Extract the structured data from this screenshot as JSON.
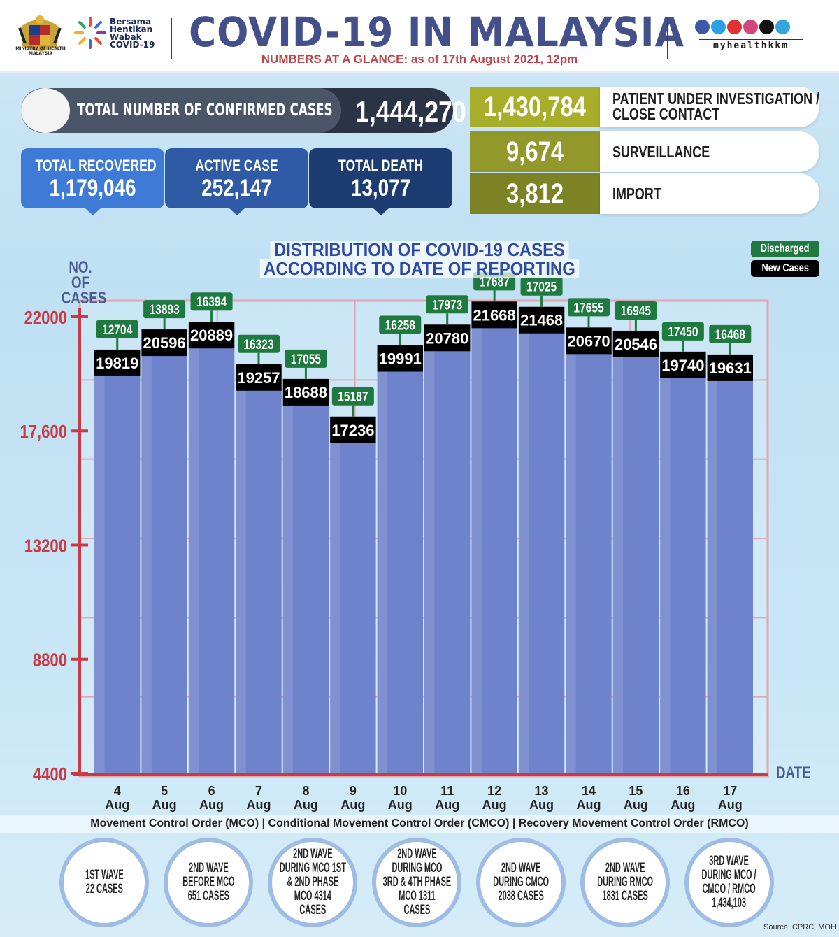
{
  "header": {
    "ministry_text": "MINISTRY OF HEALTH MALAYSIA",
    "campaign_lines": [
      "Bersama",
      "Hentikan",
      "Wabak",
      "COVID-19"
    ],
    "title": "COVID-19 IN MALAYSIA",
    "subtitle": "NUMBERS AT A GLANCE: as of 17th August 2021, 12pm",
    "social_icons": [
      "facebook-icon",
      "twitter-icon",
      "youtube-icon",
      "instagram-icon",
      "tiktok-icon",
      "telegram-icon"
    ],
    "handle": "myhealthkkm"
  },
  "totals": {
    "confirmed_label": "TOTAL NUMBER OF CONFIRMED CASES",
    "confirmed_value": "1,444,270",
    "recovered_label": "TOTAL RECOVERED",
    "recovered_value": "1,179,046",
    "active_label": "ACTIVE CASE",
    "active_value": "252,147",
    "death_label": "TOTAL DEATH",
    "death_value": "13,077"
  },
  "breakdown": [
    {
      "value": "1,430,784",
      "label_lines": [
        "PATIENT UNDER INVESTIGATION /",
        "CLOSE CONTACT"
      ],
      "color": "#a8ae2a"
    },
    {
      "value": "9,674",
      "label_lines": [
        "SURVEILLANCE"
      ],
      "color": "#92982a"
    },
    {
      "value": "3,812",
      "label_lines": [
        "IMPORT"
      ],
      "color": "#7d8224"
    }
  ],
  "chart_data": {
    "type": "bar",
    "title": "DISTRIBUTION OF COVID-19 CASES ACCORDING TO DATE OF REPORTING",
    "title_lines": [
      "DISTRIBUTION OF COVID-19 CASES",
      "ACCORDING TO DATE OF REPORTING"
    ],
    "ylabel": "NO. OF CASES",
    "ylabel_lines": [
      "NO. OF",
      "CASES"
    ],
    "xlabel": "DATE",
    "categories": [
      "4 Aug",
      "5 Aug",
      "6 Aug",
      "7 Aug",
      "8 Aug",
      "9 Aug",
      "10 Aug",
      "11 Aug",
      "12 Aug",
      "13 Aug",
      "14 Aug",
      "15 Aug",
      "16 Aug",
      "17 Aug"
    ],
    "category_lines": [
      [
        "4",
        "Aug"
      ],
      [
        "5",
        "Aug"
      ],
      [
        "6",
        "Aug"
      ],
      [
        "7",
        "Aug"
      ],
      [
        "8",
        "Aug"
      ],
      [
        "9",
        "Aug"
      ],
      [
        "10",
        "Aug"
      ],
      [
        "11",
        "Aug"
      ],
      [
        "12",
        "Aug"
      ],
      [
        "13",
        "Aug"
      ],
      [
        "14",
        "Aug"
      ],
      [
        "15",
        "Aug"
      ],
      [
        "16",
        "Aug"
      ],
      [
        "17",
        "Aug"
      ]
    ],
    "series": [
      {
        "name": "New Cases",
        "values": [
          19819,
          20596,
          20889,
          19257,
          18688,
          17236,
          19991,
          20780,
          21668,
          21468,
          20670,
          20546,
          19740,
          19631
        ],
        "color": "#000000"
      },
      {
        "name": "Discharged",
        "values": [
          12704,
          13893,
          16394,
          16323,
          17055,
          15187,
          16258,
          17973,
          17687,
          17025,
          17655,
          16945,
          17450,
          16468
        ],
        "color": "#1e7a3e"
      }
    ],
    "yticks": [
      22000,
      17600,
      13200,
      8800,
      4400
    ],
    "ytick_labels": [
      "22000",
      "17,600",
      "13200",
      "8800",
      "4400"
    ],
    "ylim": [
      4400,
      22000
    ],
    "legend": "top-right",
    "grid": true,
    "bar_color": "#6f82cc"
  },
  "footer": {
    "mco_line": "Movement Control Order (MCO) | Conditional Movement Control Order (CMCO) | Recovery Movement Control Order (RMCO)",
    "waves": [
      {
        "lines": [
          "1ST WAVE",
          "22 CASES"
        ]
      },
      {
        "lines": [
          "2ND WAVE",
          "BEFORE MCO",
          "651 CASES"
        ]
      },
      {
        "lines": [
          "2ND WAVE",
          "DURING MCO 1ST",
          "& 2ND PHASE",
          "MCO 4314",
          "CASES"
        ]
      },
      {
        "lines": [
          "2ND WAVE",
          "DURING MCO",
          "3RD & 4TH PHASE",
          "MCO 1311",
          "CASES"
        ]
      },
      {
        "lines": [
          "2ND WAVE",
          "DURING CMCO",
          "2038 CASES"
        ]
      },
      {
        "lines": [
          "2ND WAVE",
          "DURING RMCO",
          "1831 CASES"
        ]
      },
      {
        "lines": [
          "3RD WAVE",
          "DURING MCO /",
          "CMCO / RMCO",
          "1,434,103"
        ]
      }
    ],
    "source": "Source: CPRC, MOH"
  }
}
